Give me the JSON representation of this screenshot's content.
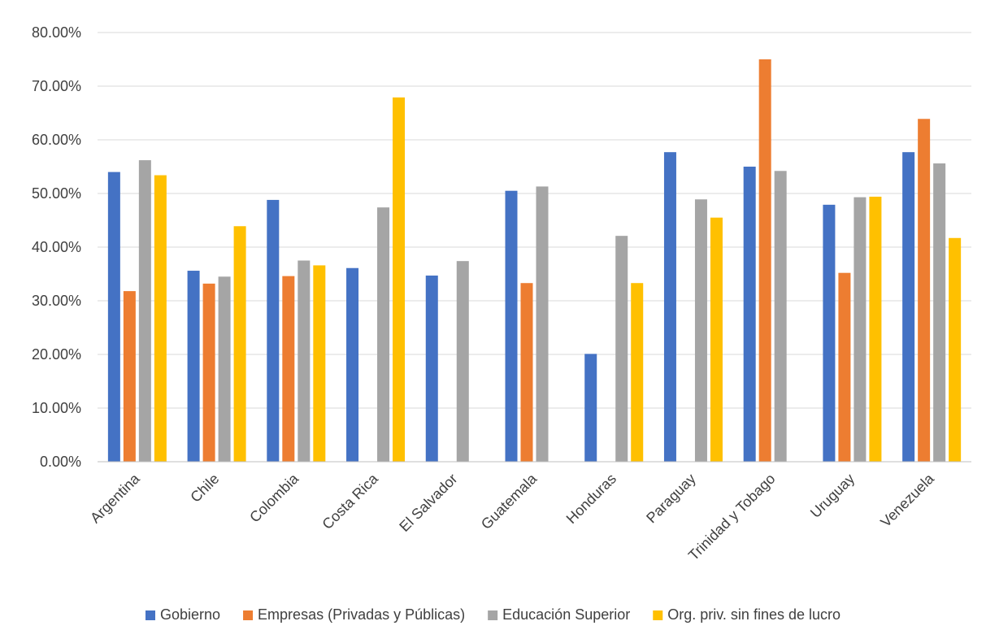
{
  "chart_data": {
    "type": "bar",
    "title": "",
    "xlabel": "",
    "ylabel": "",
    "ylim": [
      0,
      80
    ],
    "yticks": [
      "0.00%",
      "10.00%",
      "20.00%",
      "30.00%",
      "40.00%",
      "50.00%",
      "60.00%",
      "70.00%",
      "80.00%"
    ],
    "grid": true,
    "legend_position": "bottom",
    "categories": [
      "Argentina",
      "Chile",
      "Colombia",
      "Costa Rica",
      "El Salvador",
      "Guatemala",
      "Honduras",
      "Paraguay",
      "Trinidad y Tobago",
      "Uruguay",
      "Venezuela"
    ],
    "series": [
      {
        "name": "Gobierno",
        "color": "#4472c4",
        "values": [
          54.0,
          35.6,
          48.8,
          36.1,
          34.7,
          50.5,
          20.1,
          57.7,
          55.0,
          47.9,
          57.7
        ]
      },
      {
        "name": "Empresas (Privadas y Públicas)",
        "color": "#ed7d31",
        "values": [
          31.8,
          33.2,
          34.6,
          null,
          null,
          33.3,
          null,
          null,
          75.0,
          35.2,
          63.9
        ]
      },
      {
        "name": "Educación Superior",
        "color": "#a5a5a5",
        "values": [
          56.2,
          34.5,
          37.5,
          47.4,
          37.4,
          51.3,
          42.1,
          48.9,
          54.2,
          49.3,
          55.6
        ]
      },
      {
        "name": "Org. priv. sin fines de lucro",
        "color": "#ffc000",
        "values": [
          53.4,
          43.9,
          36.6,
          67.9,
          null,
          null,
          33.3,
          45.5,
          null,
          49.4,
          41.7
        ]
      }
    ]
  }
}
